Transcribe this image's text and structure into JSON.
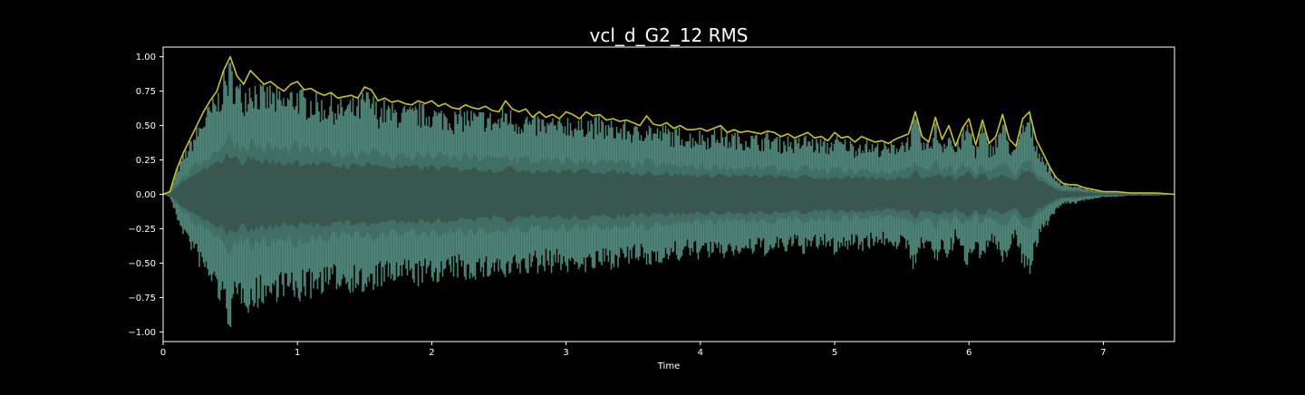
{
  "chart_data": {
    "type": "area",
    "title": "vcl_d_G2_12 RMS",
    "xlabel": "Time",
    "ylabel": "",
    "xlim": [
      0,
      7.53
    ],
    "ylim": [
      -1.07,
      1.07
    ],
    "x_ticks": [
      0,
      1,
      2,
      3,
      4,
      5,
      6,
      7
    ],
    "x_tick_labels": [
      "0",
      "1",
      "2",
      "3",
      "4",
      "5",
      "6",
      "7"
    ],
    "y_ticks": [
      1.0,
      0.75,
      0.5,
      0.25,
      0.0,
      -0.25,
      -0.5,
      -0.75,
      -1.0
    ],
    "y_tick_labels": [
      "1.00",
      "0.75",
      "0.50",
      "0.25",
      "0.00",
      "−0.25",
      "−0.50",
      "−0.75",
      "−1.00"
    ],
    "grid": false,
    "legend": "none",
    "colors": {
      "background": "#000000",
      "text": "#ffffff",
      "waveform": "#5f9f91",
      "waveform_inner": "#3f6e63",
      "waveform_core": "#3a574f",
      "envelope": "#c8c228"
    },
    "series": [
      {
        "kind": "envelope",
        "x": [
          0,
          0.05,
          0.1,
          0.15,
          0.2,
          0.25,
          0.3,
          0.35,
          0.4,
          0.45,
          0.5,
          0.55,
          0.6,
          0.65,
          0.7,
          0.75,
          0.8,
          0.85,
          0.9,
          0.95,
          1.0,
          1.05,
          1.1,
          1.15,
          1.2,
          1.25,
          1.3,
          1.35,
          1.4,
          1.45,
          1.5,
          1.55,
          1.6,
          1.65,
          1.7,
          1.75,
          1.8,
          1.85,
          1.9,
          1.95,
          2.0,
          2.05,
          2.1,
          2.15,
          2.2,
          2.25,
          2.3,
          2.35,
          2.4,
          2.45,
          2.5,
          2.55,
          2.6,
          2.65,
          2.7,
          2.75,
          2.8,
          2.85,
          2.9,
          2.95,
          3.0,
          3.05,
          3.1,
          3.15,
          3.2,
          3.25,
          3.3,
          3.35,
          3.4,
          3.45,
          3.5,
          3.55,
          3.6,
          3.65,
          3.7,
          3.75,
          3.8,
          3.85,
          3.9,
          3.95,
          4.0,
          4.05,
          4.1,
          4.15,
          4.2,
          4.25,
          4.3,
          4.35,
          4.4,
          4.45,
          4.5,
          4.55,
          4.6,
          4.65,
          4.7,
          4.75,
          4.8,
          4.85,
          4.9,
          4.95,
          5.0,
          5.05,
          5.1,
          5.15,
          5.2,
          5.25,
          5.3,
          5.35,
          5.4,
          5.45,
          5.5,
          5.55,
          5.6,
          5.65,
          5.7,
          5.75,
          5.8,
          5.85,
          5.9,
          5.95,
          6.0,
          6.05,
          6.1,
          6.15,
          6.2,
          6.25,
          6.3,
          6.35,
          6.4,
          6.45,
          6.5,
          6.55,
          6.6,
          6.65,
          6.7,
          6.75,
          6.8,
          6.85,
          6.9,
          6.95,
          7.0,
          7.1,
          7.2,
          7.3,
          7.4,
          7.53
        ],
        "values": [
          0.0,
          0.02,
          0.18,
          0.3,
          0.4,
          0.5,
          0.6,
          0.68,
          0.75,
          0.9,
          1.0,
          0.86,
          0.8,
          0.9,
          0.85,
          0.8,
          0.82,
          0.78,
          0.75,
          0.8,
          0.82,
          0.76,
          0.77,
          0.74,
          0.72,
          0.74,
          0.7,
          0.71,
          0.72,
          0.7,
          0.78,
          0.76,
          0.68,
          0.7,
          0.67,
          0.68,
          0.66,
          0.65,
          0.68,
          0.66,
          0.68,
          0.64,
          0.66,
          0.63,
          0.62,
          0.65,
          0.63,
          0.62,
          0.64,
          0.61,
          0.6,
          0.68,
          0.62,
          0.6,
          0.62,
          0.56,
          0.6,
          0.56,
          0.58,
          0.55,
          0.6,
          0.58,
          0.55,
          0.6,
          0.57,
          0.58,
          0.54,
          0.55,
          0.53,
          0.54,
          0.52,
          0.5,
          0.57,
          0.51,
          0.5,
          0.52,
          0.48,
          0.5,
          0.47,
          0.47,
          0.48,
          0.46,
          0.48,
          0.5,
          0.45,
          0.47,
          0.45,
          0.46,
          0.45,
          0.44,
          0.46,
          0.45,
          0.42,
          0.44,
          0.41,
          0.43,
          0.45,
          0.41,
          0.42,
          0.39,
          0.45,
          0.41,
          0.42,
          0.38,
          0.42,
          0.4,
          0.38,
          0.39,
          0.37,
          0.4,
          0.42,
          0.44,
          0.6,
          0.42,
          0.38,
          0.56,
          0.4,
          0.5,
          0.35,
          0.48,
          0.55,
          0.36,
          0.54,
          0.37,
          0.42,
          0.58,
          0.4,
          0.35,
          0.55,
          0.6,
          0.4,
          0.3,
          0.2,
          0.12,
          0.08,
          0.07,
          0.07,
          0.05,
          0.04,
          0.03,
          0.02,
          0.02,
          0.01,
          0.01,
          0.01,
          0.0
        ]
      }
    ]
  }
}
